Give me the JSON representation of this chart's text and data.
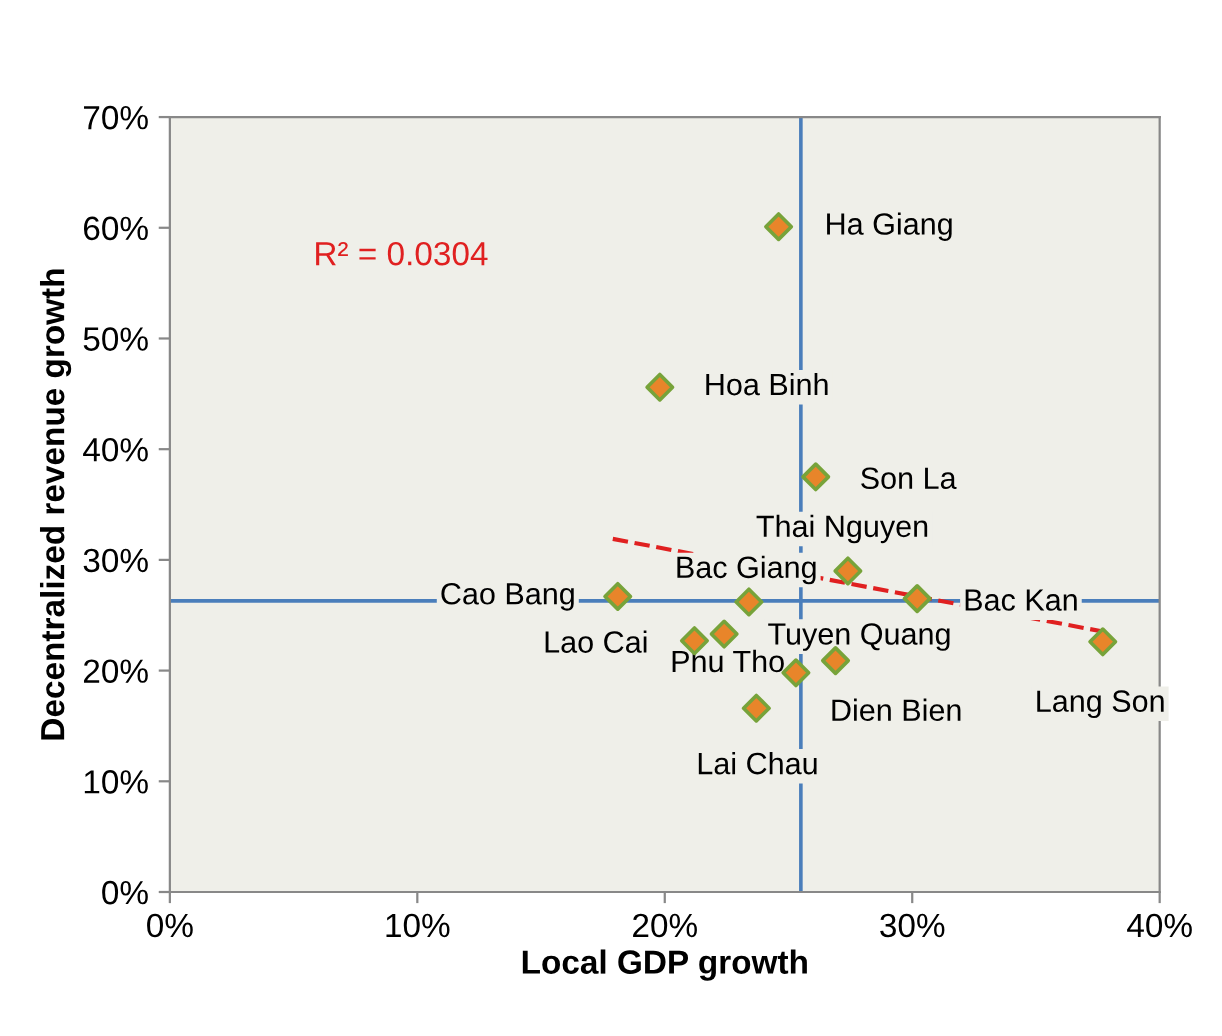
{
  "chart_data": {
    "type": "scatter",
    "xlabel": "Local GDP growth",
    "ylabel": "Decentralized revenue growth",
    "series": [
      {
        "color": "#e8852a",
        "marker": "diamond",
        "x": [
          24.6,
          19.8,
          26.1,
          27.4,
          23.4,
          18.1,
          30.2,
          37.7,
          21.2,
          22.4,
          26.9,
          25.3,
          23.7
        ],
        "values": [
          60.1,
          45.6,
          37.5,
          29.0,
          26.2,
          26.7,
          26.5,
          22.6,
          22.7,
          23.3,
          20.9,
          19.8,
          16.6
        ]
      },
      {
        "type": "line",
        "color": "#e02020",
        "line_style": "dashed",
        "x": [
          17.9,
          38.0
        ],
        "values": [
          31.9,
          23.4
        ]
      }
    ],
    "annotations": [
      {
        "text": "Ha Giang",
        "x": 24.6,
        "y": 60.1
      },
      {
        "text": "Hoa Binh",
        "x": 19.8,
        "y": 45.6
      },
      {
        "text": "Son La",
        "x": 26.1,
        "y": 37.5
      },
      {
        "text": "Thai Nguyen",
        "x": 27.4,
        "y": 29.0
      },
      {
        "text": "Bac Giang",
        "x": 23.4,
        "y": 26.2
      },
      {
        "text": "Cao Bang",
        "x": 18.1,
        "y": 26.7
      },
      {
        "text": "Bac Kan",
        "x": 30.2,
        "y": 26.5
      },
      {
        "text": "Lang Son",
        "x": 37.7,
        "y": 22.6
      },
      {
        "text": "Lao Cai",
        "x": 21.2,
        "y": 22.7
      },
      {
        "text": "Phu Tho",
        "x": 22.4,
        "y": 23.3
      },
      {
        "text": "Tuyen Quang",
        "x": 26.9,
        "y": 20.9
      },
      {
        "text": "Dien Bien",
        "x": 25.3,
        "y": 19.8
      },
      {
        "text": "Lai Chau",
        "x": 23.7,
        "y": 16.6
      },
      "R² = 0.0304"
    ],
    "ref_lines": [
      {
        "axis": "x",
        "value": 25.5,
        "color": "#4a7ebb"
      },
      {
        "axis": "y",
        "value": 26.3,
        "color": "#4a7ebb"
      }
    ],
    "xlim": [
      0,
      40
    ],
    "ylim": [
      0,
      70
    ],
    "xticks": [
      {
        "value": 0,
        "label": "0%"
      },
      {
        "value": 10,
        "label": "10%"
      },
      {
        "value": 20,
        "label": "20%"
      },
      {
        "value": 30,
        "label": "30%"
      },
      {
        "value": 40,
        "label": "40%"
      }
    ],
    "yticks": [
      {
        "value": 0,
        "label": "0%"
      },
      {
        "value": 10,
        "label": "10%"
      },
      {
        "value": 20,
        "label": "20%"
      },
      {
        "value": 30,
        "label": "30%"
      },
      {
        "value": 40,
        "label": "40%"
      },
      {
        "value": 50,
        "label": "50%"
      },
      {
        "value": 60,
        "label": "60%"
      },
      {
        "value": 70,
        "label": "70%"
      }
    ],
    "grid": false,
    "legend": false
  }
}
